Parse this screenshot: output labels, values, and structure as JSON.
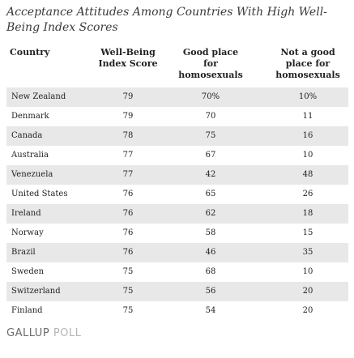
{
  "title": "Acceptance Attitudes Among Countries With High Well-Being Index Scores",
  "columns": {
    "country": "Country",
    "wellbeing": [
      "Well-Being",
      "Index Score"
    ],
    "good": [
      "Good place",
      "for",
      "homosexuals"
    ],
    "notgood": [
      "Not a good",
      "place for",
      "homosexuals"
    ]
  },
  "rows": [
    {
      "country": "New Zealand",
      "wellbeing": "79",
      "good": "70%",
      "notgood": "10%"
    },
    {
      "country": "Denmark",
      "wellbeing": "79",
      "good": "70",
      "notgood": "11"
    },
    {
      "country": "Canada",
      "wellbeing": "78",
      "good": "75",
      "notgood": "16"
    },
    {
      "country": "Australia",
      "wellbeing": "77",
      "good": "67",
      "notgood": "10"
    },
    {
      "country": "Venezuela",
      "wellbeing": "77",
      "good": "42",
      "notgood": "48"
    },
    {
      "country": "United States",
      "wellbeing": "76",
      "good": "65",
      "notgood": "26"
    },
    {
      "country": "Ireland",
      "wellbeing": "76",
      "good": "62",
      "notgood": "18"
    },
    {
      "country": "Norway",
      "wellbeing": "76",
      "good": "58",
      "notgood": "15"
    },
    {
      "country": "Brazil",
      "wellbeing": "76",
      "good": "46",
      "notgood": "35"
    },
    {
      "country": "Sweden",
      "wellbeing": "75",
      "good": "68",
      "notgood": "10"
    },
    {
      "country": "Switzerland",
      "wellbeing": "75",
      "good": "56",
      "notgood": "20"
    },
    {
      "country": "Finland",
      "wellbeing": "75",
      "good": "54",
      "notgood": "20"
    }
  ],
  "logo": {
    "part1": "GALLUP",
    "part2": "POLL"
  },
  "colors": {
    "row_shade": "#e8e8e8",
    "logo_dark": "#6b6b6b",
    "logo_light": "#b5b5b5"
  }
}
